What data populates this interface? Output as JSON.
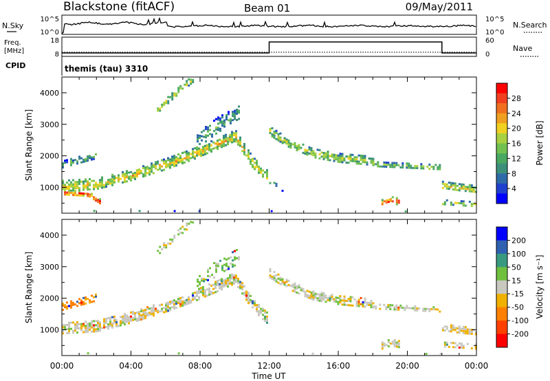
{
  "header": {
    "station": "Blackstone (fitACF)",
    "beam": "Beam 01",
    "date": "09/May/2011"
  },
  "status": {
    "nsky_label": "N.Sky",
    "nsky_ticks": [
      "10^5",
      "10^0"
    ],
    "nsearch_label": "N.Search",
    "nsearch_ticks": [
      "10^5",
      "10^0"
    ],
    "freq_label": "Freq.",
    "freq_unit": "[MHz]",
    "freq_ticks": [
      "18",
      "8"
    ],
    "nave_label": "Nave",
    "nave_ticks": [
      "60",
      "0"
    ],
    "cpid_label": "CPID",
    "cpid_value": "themis (tau) 3310",
    "freq_trace": [
      [
        0,
        9.8
      ],
      [
        12,
        9.8
      ],
      [
        12,
        15.5
      ],
      [
        22,
        15.5
      ],
      [
        22,
        9.8
      ],
      [
        24,
        9.8
      ]
    ],
    "nave_trace": [
      [
        0,
        13
      ],
      [
        24,
        13
      ]
    ]
  },
  "colors": {
    "power_scale": [
      "#0000ff",
      "#2040d0",
      "#2f6aa8",
      "#3d8f7a",
      "#4aa860",
      "#72c050",
      "#a8d040",
      "#f0d020",
      "#f0a020",
      "#f07020",
      "#f04020",
      "#ff0000"
    ],
    "velocity_scale": [
      "#ff0000",
      "#ff4000",
      "#ff8000",
      "#f0b000",
      "#c8c8c0",
      "#70c040",
      "#3a9a80",
      "#3060b0",
      "#0000ff"
    ]
  },
  "chart_data": [
    {
      "type": "heatmap",
      "panel": "power",
      "ylabel": "Slant Range [km]",
      "xlim": [
        0,
        24
      ],
      "ylim": [
        180,
        4500
      ],
      "yticks": [
        1000,
        2000,
        3000,
        4000
      ],
      "colorbar": {
        "label": "Power [dB]",
        "ticks": [
          "28",
          "24",
          "20",
          "16",
          "12",
          "8",
          "4"
        ],
        "range": [
          0,
          32
        ]
      },
      "bands": [
        {
          "x": [
            0.0,
            2.0,
            4.0,
            6.0,
            7.5,
            9.0,
            10.0,
            11.0,
            11.9
          ],
          "y": [
            1050,
            1120,
            1400,
            1750,
            2050,
            2400,
            2650,
            1800,
            1350
          ],
          "width": 380,
          "power": 20,
          "density": 0.85
        },
        {
          "x": [
            0.0,
            1.5,
            2.2
          ],
          "y": [
            850,
            800,
            550
          ],
          "width": 180,
          "power": 29,
          "density": 0.95
        },
        {
          "x": [
            0.0,
            1.0,
            2.0
          ],
          "y": [
            1750,
            1900,
            2050
          ],
          "width": 220,
          "power": 12,
          "density": 0.7
        },
        {
          "x": [
            5.5,
            6.5,
            7.6
          ],
          "y": [
            3500,
            4000,
            4500
          ],
          "width": 200,
          "power": 18,
          "density": 0.75
        },
        {
          "x": [
            7.8,
            9.0,
            10.2
          ],
          "y": [
            2500,
            3000,
            3350
          ],
          "width": 500,
          "power": 12,
          "density": 0.55
        },
        {
          "x": [
            12.0,
            13.0,
            14.5,
            16.0,
            18.0
          ],
          "y": [
            2800,
            2450,
            2100,
            1950,
            1850
          ],
          "width": 300,
          "power": 17,
          "density": 0.8
        },
        {
          "x": [
            18.0,
            20.0,
            21.9
          ],
          "y": [
            1750,
            1700,
            1650
          ],
          "width": 170,
          "power": 16,
          "density": 0.8
        },
        {
          "x": [
            22.0,
            23.0,
            24.0
          ],
          "y": [
            1080,
            1000,
            950
          ],
          "width": 260,
          "power": 20,
          "density": 0.85
        },
        {
          "x": [
            22.0,
            24.0
          ],
          "y": [
            550,
            480
          ],
          "width": 160,
          "power": 18,
          "density": 0.6
        },
        {
          "x": [
            18.5,
            19.0,
            19.5
          ],
          "y": [
            520,
            620,
            560
          ],
          "width": 220,
          "power": 29,
          "density": 0.9
        },
        {
          "x": [
            12.0,
            12.8
          ],
          "y": [
            1200,
            1000
          ],
          "width": 200,
          "power": 9,
          "density": 0.35
        },
        {
          "x": [
            0.5,
            24.0
          ],
          "y": [
            260,
            240
          ],
          "width": 50,
          "power": 14,
          "density": 0.07
        }
      ]
    },
    {
      "type": "heatmap",
      "panel": "velocity",
      "xlabel": "Time UT",
      "ylabel": "Slant Range [km]",
      "xlim": [
        0,
        24
      ],
      "ylim": [
        180,
        4500
      ],
      "xticks": [
        "00:00",
        "04:00",
        "08:00",
        "12:00",
        "16:00",
        "20:00",
        "00:00"
      ],
      "yticks": [
        1000,
        2000,
        3000,
        4000
      ],
      "colorbar": {
        "label": "Velocity [m s⁻¹]",
        "ticks": [
          "200",
          "100",
          "50",
          "15",
          "-15",
          "-50",
          "-100",
          "-200"
        ],
        "range": [
          -250,
          250
        ]
      },
      "bands": [
        {
          "x": [
            0.0,
            2.0,
            4.0,
            6.0,
            7.5,
            9.0,
            10.0,
            11.0,
            11.9
          ],
          "y": [
            1050,
            1120,
            1400,
            1750,
            2050,
            2400,
            2650,
            1800,
            1350
          ],
          "width": 380,
          "velocity": -5,
          "density": 0.8
        },
        {
          "x": [
            0.0,
            1.0,
            2.0
          ],
          "y": [
            1750,
            1900,
            2050
          ],
          "width": 220,
          "velocity": -60,
          "density": 0.55
        },
        {
          "x": [
            5.5,
            6.5,
            7.6
          ],
          "y": [
            3500,
            4000,
            4500
          ],
          "width": 200,
          "velocity": 0,
          "density": 0.6
        },
        {
          "x": [
            7.8,
            9.0,
            10.2
          ],
          "y": [
            2500,
            3000,
            3350
          ],
          "width": 500,
          "velocity": 30,
          "density": 0.45
        },
        {
          "x": [
            12.0,
            13.0,
            14.5,
            16.0,
            18.0
          ],
          "y": [
            2800,
            2450,
            2100,
            1950,
            1850
          ],
          "width": 300,
          "velocity": 0,
          "density": 0.75
        },
        {
          "x": [
            18.0,
            20.0,
            21.9
          ],
          "y": [
            1750,
            1700,
            1650
          ],
          "width": 170,
          "velocity": 0,
          "density": 0.75
        },
        {
          "x": [
            22.0,
            23.0,
            24.0
          ],
          "y": [
            1080,
            1000,
            950
          ],
          "width": 260,
          "velocity": -10,
          "density": 0.8
        },
        {
          "x": [
            22.0,
            24.0
          ],
          "y": [
            550,
            480
          ],
          "width": 160,
          "velocity": -5,
          "density": 0.6
        },
        {
          "x": [
            18.5,
            19.0,
            19.5
          ],
          "y": [
            520,
            620,
            560
          ],
          "width": 220,
          "velocity": 0,
          "density": 0.85
        },
        {
          "x": [
            0.5,
            24.0
          ],
          "y": [
            260,
            240
          ],
          "width": 50,
          "velocity": 25,
          "density": 0.07
        }
      ]
    }
  ]
}
